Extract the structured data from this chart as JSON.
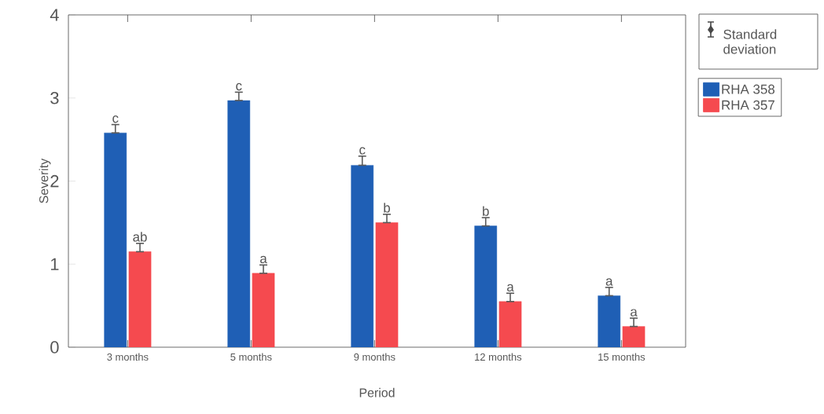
{
  "chart_data": {
    "type": "bar",
    "xlabel": "Period",
    "ylabel": "Severity",
    "categories": [
      "3 months",
      "5 months",
      "9 months",
      "12 months",
      "15 months"
    ],
    "series": [
      {
        "name": "RHA 358",
        "color": "#1f5fb5",
        "values": [
          2.58,
          2.97,
          2.19,
          1.46,
          0.62
        ],
        "errors": [
          [
            2.58,
            2.68
          ],
          [
            2.97,
            3.07
          ],
          [
            2.19,
            2.3
          ],
          [
            1.46,
            1.56
          ],
          [
            0.62,
            0.72
          ]
        ],
        "value_labels": [
          "c",
          "c",
          "c",
          "b",
          "a"
        ]
      },
      {
        "name": "RHA 357",
        "color": "#f54a4f",
        "values": [
          1.15,
          0.89,
          1.5,
          0.55,
          0.25
        ],
        "errors": [
          [
            1.15,
            1.25
          ],
          [
            0.89,
            0.99
          ],
          [
            1.5,
            1.6
          ],
          [
            0.55,
            0.65
          ],
          [
            0.25,
            0.35
          ]
        ],
        "value_labels": [
          "ab",
          "a",
          "b",
          "a",
          "a"
        ]
      }
    ],
    "annotations": [
      "Standard deviation"
    ],
    "ylim": [
      0,
      4
    ],
    "yticks": [
      0,
      1,
      2,
      3,
      4
    ],
    "grid": false,
    "legend": "right"
  }
}
